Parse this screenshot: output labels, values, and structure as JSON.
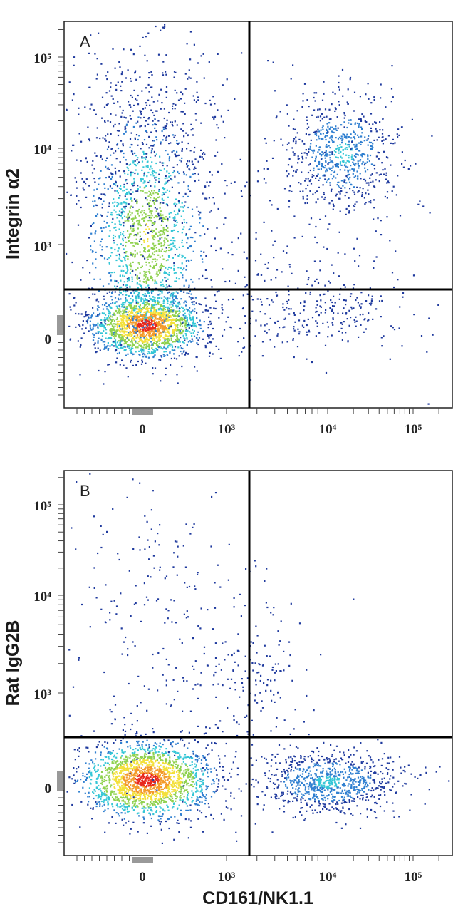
{
  "chart_data": [
    {
      "type": "scatter",
      "panel_label": "A",
      "xlabel": "",
      "ylabel": "Integrin α2",
      "x_tick_labels": [
        "0",
        "10³",
        "10⁴",
        "10⁵"
      ],
      "y_tick_labels": [
        "0",
        "10³",
        "10⁴",
        "10⁵"
      ],
      "quadrant_gate": {
        "x": 1700,
        "y": 350
      },
      "populations": [
        {
          "x": 50,
          "y": 150,
          "relative_density": 1.0
        },
        {
          "x": 150,
          "y": 900,
          "relative_density": 0.25
        },
        {
          "x": 14000,
          "y": 9000,
          "relative_density": 0.3
        }
      ],
      "colormap": [
        "#1f3a9e",
        "#2f7fd0",
        "#34c6d6",
        "#8fd14f",
        "#f3e03b",
        "#f39b2b",
        "#e8281e"
      ]
    },
    {
      "type": "scatter",
      "panel_label": "B",
      "xlabel": "CD161/NK1.1",
      "ylabel": "Rat IgG2B",
      "x_tick_labels": [
        "0",
        "10³",
        "10⁴",
        "10⁵"
      ],
      "y_tick_labels": [
        "0",
        "10³",
        "10⁴",
        "10⁵"
      ],
      "quadrant_gate": {
        "x": 1700,
        "y": 350
      },
      "populations": [
        {
          "x": 30,
          "y": 100,
          "relative_density": 1.0
        },
        {
          "x": 11000,
          "y": 100,
          "relative_density": 0.35
        },
        {
          "x": 2500,
          "y": 2000,
          "relative_density": 0.05
        }
      ],
      "colormap": [
        "#1f3a9e",
        "#2f7fd0",
        "#34c6d6",
        "#8fd14f",
        "#f3e03b",
        "#f39b2b",
        "#e8281e"
      ]
    }
  ]
}
